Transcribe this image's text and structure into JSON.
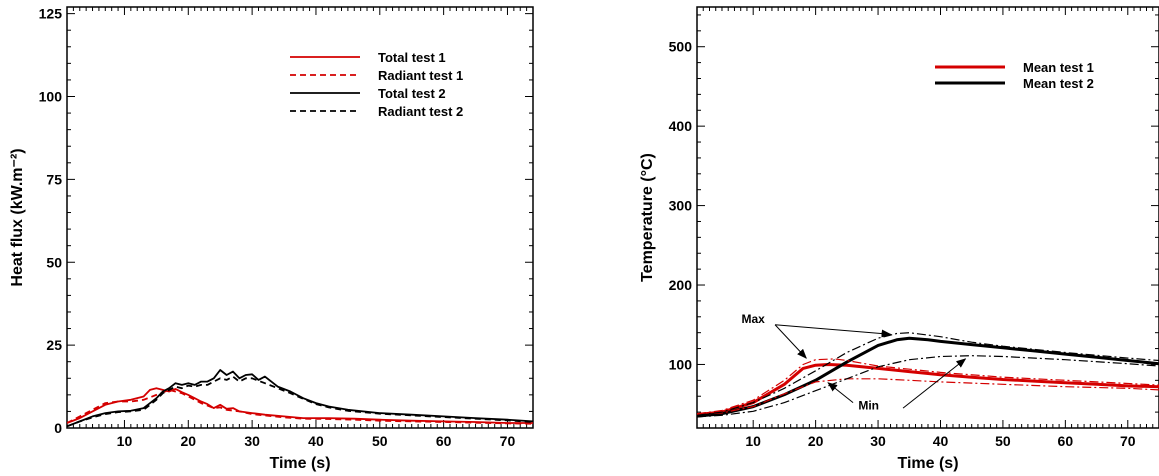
{
  "chart_data": [
    {
      "type": "line",
      "xlabel": "Time (s)",
      "ylabel": "Heat flux (kW.m⁻²)",
      "xlim": [
        1,
        74
      ],
      "ylim": [
        0,
        127
      ],
      "xticks": [
        10,
        20,
        30,
        40,
        50,
        60,
        70
      ],
      "yticks": [
        0,
        25,
        50,
        75,
        100,
        125
      ],
      "legend_position": "top-right",
      "series": [
        {
          "name": "Total test 1",
          "color": "#d40000",
          "dash": "solid",
          "x": [
            1,
            3,
            5,
            7,
            9,
            11,
            13,
            14,
            15,
            16,
            17,
            18,
            19,
            20,
            21,
            22,
            23,
            24,
            25,
            26,
            27,
            28,
            30,
            32,
            35,
            38,
            42,
            46,
            50,
            55,
            60,
            65,
            70,
            74
          ],
          "y": [
            1.5,
            3,
            5,
            7,
            8,
            8.5,
            9.5,
            11.5,
            12,
            11.5,
            11,
            11.8,
            10.8,
            10,
            9,
            8,
            7.2,
            6,
            7,
            5.8,
            6,
            5,
            4.5,
            4,
            3.5,
            3,
            3,
            2.8,
            2.5,
            2.2,
            2,
            1.8,
            1.5,
            1.5
          ]
        },
        {
          "name": "Radiant test 1",
          "color": "#d40000",
          "dash": "dashed",
          "x": [
            1,
            3,
            5,
            7,
            9,
            11,
            13,
            15,
            17,
            19,
            20,
            21,
            22,
            23,
            24,
            25,
            26,
            28,
            30,
            32,
            35,
            38,
            42,
            46,
            50,
            55,
            60,
            65,
            70,
            74
          ],
          "y": [
            1.5,
            3.5,
            5.5,
            7.5,
            8,
            8,
            8.5,
            10,
            11.5,
            10.5,
            9.5,
            8.5,
            7.5,
            6.8,
            6,
            6.2,
            5.5,
            5,
            4.2,
            3.8,
            3.2,
            2.8,
            2.7,
            2.5,
            2.2,
            2,
            1.8,
            1.6,
            1.4,
            1.3
          ]
        },
        {
          "name": "Total test 2",
          "color": "#000000",
          "dash": "solid",
          "x": [
            1,
            3,
            5,
            7,
            9,
            11,
            13,
            15,
            16,
            17,
            18,
            19,
            20,
            21,
            22,
            23,
            24,
            25,
            26,
            27,
            28,
            29,
            30,
            31,
            32,
            33,
            34,
            36,
            38,
            40,
            42,
            45,
            50,
            55,
            60,
            65,
            70,
            74
          ],
          "y": [
            0.5,
            2,
            3.5,
            4.5,
            5,
            5.2,
            6,
            9,
            11,
            12,
            13.5,
            13,
            13.5,
            13,
            14,
            14,
            15,
            17.5,
            16,
            17,
            15,
            16,
            16.2,
            14.5,
            15.5,
            14,
            12.5,
            11,
            9,
            7.5,
            6.5,
            5.5,
            4.5,
            4,
            3.5,
            3,
            2.5,
            2
          ]
        },
        {
          "name": "Radiant test 2",
          "color": "#000000",
          "dash": "dashed",
          "x": [
            1,
            3,
            5,
            7,
            9,
            11,
            13,
            15,
            16,
            17,
            18,
            19,
            20,
            21,
            22,
            23,
            24,
            25,
            26,
            27,
            28,
            29,
            30,
            32,
            34,
            36,
            38,
            40,
            42,
            45,
            50,
            55,
            60,
            65,
            70,
            74
          ],
          "y": [
            0.5,
            2,
            3.2,
            4.2,
            4.8,
            5,
            5.5,
            8.5,
            10.5,
            11.5,
            12.5,
            12,
            12.8,
            12.5,
            13,
            13,
            14,
            15,
            14.5,
            15.5,
            14,
            15,
            15,
            13.5,
            12,
            10.5,
            8.8,
            7.2,
            6.2,
            5.2,
            4.3,
            3.8,
            3.3,
            2.8,
            2.3,
            1.8
          ]
        }
      ]
    },
    {
      "type": "line",
      "xlabel": "Time (s)",
      "ylabel": "Temperature (°C)",
      "xlim": [
        1,
        75
      ],
      "ylim": [
        20,
        550
      ],
      "xticks": [
        10,
        20,
        30,
        40,
        50,
        60,
        70
      ],
      "yticks": [
        100,
        200,
        300,
        400,
        500
      ],
      "legend_position": "top-right",
      "annotations": [
        "Max",
        "Min"
      ],
      "series": [
        {
          "name": "Mean test 1",
          "color": "#d40000",
          "dash": "solid",
          "width": 3,
          "x": [
            1,
            5,
            10,
            15,
            18,
            20,
            22,
            25,
            30,
            35,
            40,
            45,
            50,
            55,
            60,
            65,
            70,
            75
          ],
          "y": [
            37,
            40,
            52,
            75,
            95,
            99,
            100,
            99,
            95,
            91,
            87,
            84,
            81,
            79,
            77,
            75,
            73,
            72
          ]
        },
        {
          "name": "Mean test 2",
          "color": "#000000",
          "dash": "solid",
          "width": 3,
          "x": [
            1,
            5,
            10,
            15,
            20,
            25,
            30,
            33,
            35,
            38,
            40,
            45,
            50,
            55,
            60,
            65,
            70,
            75
          ],
          "y": [
            35,
            38,
            47,
            62,
            80,
            103,
            124,
            131,
            133,
            131,
            129,
            125,
            121,
            117,
            113,
            109,
            105,
            101
          ]
        },
        {
          "name": "",
          "color": "#d40000",
          "dash": "dashdot",
          "width": 1.2,
          "x": [
            1,
            5,
            10,
            15,
            18,
            20,
            23,
            25,
            30,
            35,
            40,
            50,
            60,
            70,
            75
          ],
          "y": [
            38,
            42,
            55,
            80,
            100,
            106,
            107,
            105,
            98,
            94,
            90,
            84,
            80,
            76,
            74
          ]
        },
        {
          "name": "",
          "color": "#d40000",
          "dash": "dashdot",
          "width": 1.2,
          "x": [
            1,
            5,
            10,
            15,
            20,
            25,
            30,
            35,
            40,
            50,
            60,
            70,
            75
          ],
          "y": [
            37,
            39,
            47,
            63,
            78,
            82,
            82,
            80,
            78,
            75,
            72,
            70,
            68
          ]
        },
        {
          "name": "",
          "color": "#000000",
          "dash": "dashdot",
          "width": 1.2,
          "x": [
            1,
            5,
            10,
            15,
            20,
            25,
            30,
            33,
            35,
            40,
            45,
            50,
            60,
            70,
            75
          ],
          "y": [
            36,
            40,
            52,
            70,
            92,
            115,
            133,
            139,
            140,
            135,
            128,
            123,
            115,
            108,
            105
          ]
        },
        {
          "name": "",
          "color": "#000000",
          "dash": "dashdot",
          "width": 1.2,
          "x": [
            1,
            5,
            10,
            15,
            20,
            25,
            30,
            35,
            40,
            45,
            50,
            60,
            70,
            75
          ],
          "y": [
            34,
            36,
            41,
            52,
            67,
            82,
            97,
            106,
            110,
            111,
            110,
            106,
            101,
            98
          ]
        }
      ]
    }
  ]
}
